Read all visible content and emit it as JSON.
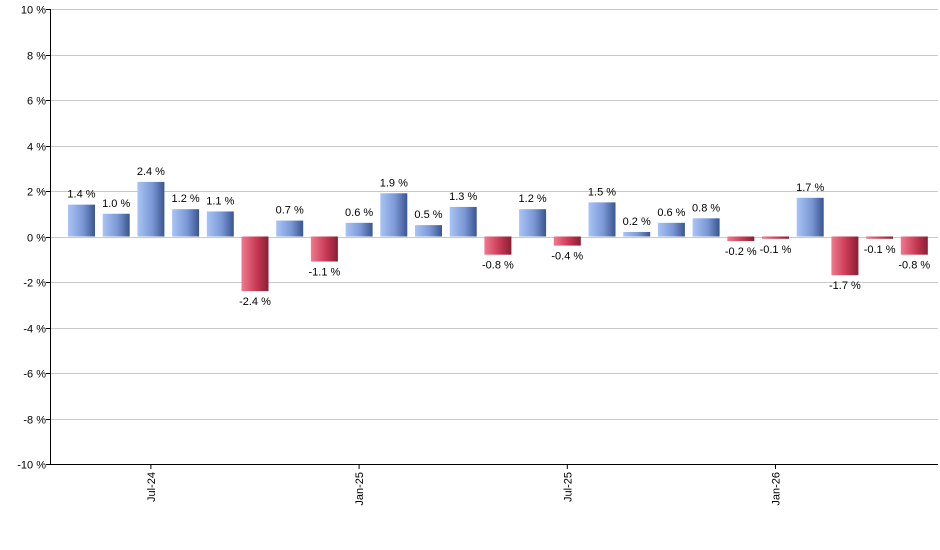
{
  "chart_data": {
    "type": "bar",
    "ylim": [
      -10,
      10
    ],
    "y_ticks": [
      10,
      8,
      6,
      4,
      2,
      0,
      -2,
      -4,
      -6,
      -8,
      -10
    ],
    "y_tick_labels": [
      "10 %",
      "8 %",
      "6 %",
      "4 %",
      "2 %",
      "0 %",
      "-2 %",
      "-4 %",
      "-6 %",
      "-8 %",
      "-10 %"
    ],
    "x_tick_labels": [
      {
        "label": "Jul-24",
        "index": 2
      },
      {
        "label": "Jan-25",
        "index": 8
      },
      {
        "label": "Jul-25",
        "index": 14
      },
      {
        "label": "Jan-26",
        "index": 20
      }
    ],
    "values": [
      1.4,
      1.0,
      2.4,
      1.2,
      1.1,
      -2.4,
      0.7,
      -1.1,
      0.6,
      1.9,
      0.5,
      1.3,
      -0.8,
      1.2,
      -0.4,
      1.5,
      0.2,
      0.6,
      0.8,
      -0.2,
      -0.1,
      1.7,
      -1.7,
      -0.1,
      -0.8
    ],
    "value_labels": [
      "1.4 %",
      "1.0 %",
      "2.4 %",
      "1.2 %",
      "1.1 %",
      "-2.4 %",
      "0.7 %",
      "-1.1 %",
      "0.6 %",
      "1.9 %",
      "0.5 %",
      "1.3 %",
      "-0.8 %",
      "1.2 %",
      "-0.4 %",
      "1.5 %",
      "0.2 %",
      "0.6 %",
      "0.8 %",
      "-0.2 %",
      "-0.1 %",
      "1.7 %",
      "-1.7 %",
      "-0.1 %",
      "-0.8 %"
    ],
    "grid": true,
    "colors": {
      "positive_light": "#a9c4f5",
      "positive_dark": "#3a5590",
      "negative_light": "#f07a90",
      "negative_dark": "#8a1e34",
      "grid": "#c8c8c8",
      "axis": "#000000"
    }
  }
}
